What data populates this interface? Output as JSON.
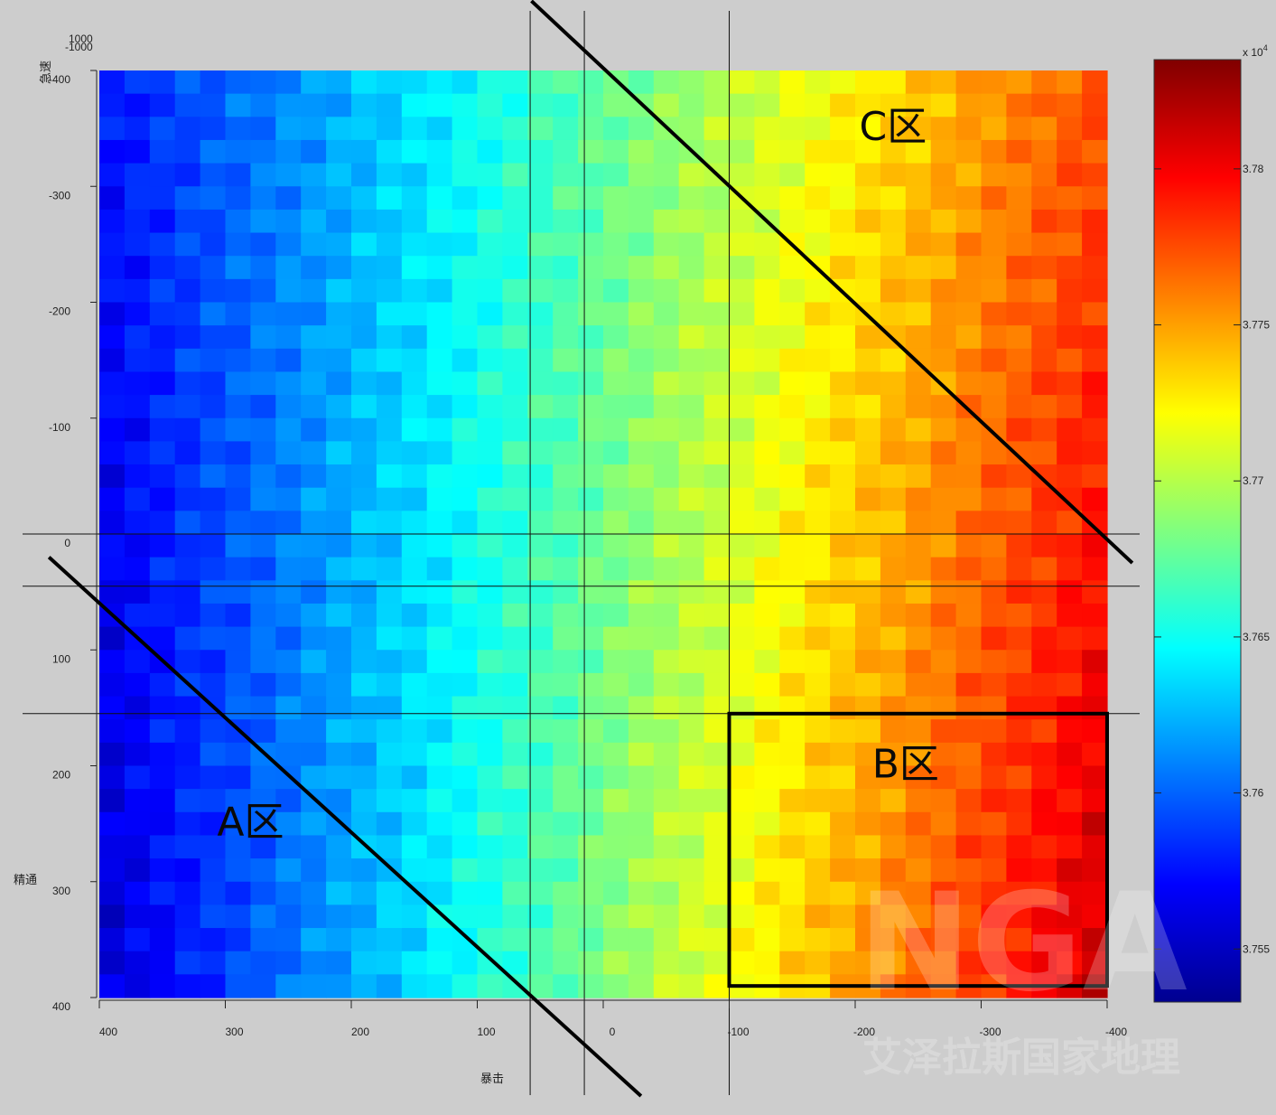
{
  "chart_data": {
    "type": "heatmap",
    "title": "",
    "xlabel": "暴击",
    "ylabel": "精通",
    "top_axis_label": "急速",
    "xlim": [
      400,
      -400
    ],
    "ylim": [
      -400,
      400
    ],
    "x_ticks": [
      "400",
      "300",
      "200",
      "100",
      "0",
      "-100",
      "-200",
      "-300",
      "-400"
    ],
    "y_ticks": [
      "-400",
      "-300",
      "-200",
      "-100",
      "0",
      "100",
      "200",
      "300",
      "400"
    ],
    "x_tick_values": [
      400,
      300,
      200,
      100,
      0,
      -100,
      -200,
      -300,
      -400
    ],
    "y_tick_values": [
      -400,
      -300,
      -200,
      -100,
      0,
      100,
      200,
      300,
      400
    ],
    "top_corner_ticks": [
      "1000",
      "-1000"
    ],
    "colorbar": {
      "colormap": "jet",
      "multiplier": "x 10",
      "exponent": "4",
      "range": [
        3.7533,
        3.7835
      ],
      "ticks": [
        "3.755",
        "3.76",
        "3.765",
        "3.77",
        "3.775",
        "3.78"
      ],
      "tick_values": [
        3.755,
        3.76,
        3.765,
        3.77,
        3.775,
        3.78
      ]
    },
    "value_field": {
      "description": "value increases from upper-left (blue) to lower-right (red)",
      "corners": {
        "x400_y-400": 3.7575,
        "x-400_y-400": 3.7775,
        "x400_y400": 3.7555,
        "x-400_y400": 3.7815
      }
    },
    "annotations": [
      {
        "label": "A区",
        "x": 280,
        "y": 260
      },
      {
        "label": "B区",
        "x": -240,
        "y": 210
      },
      {
        "label": "C区",
        "x": -230,
        "y": -340
      }
    ],
    "region_b_box": {
      "x": [
        -100,
        -400
      ],
      "y": [
        155,
        390
      ]
    },
    "boundary_lines": [
      {
        "from": {
          "x": 440,
          "y": 20
        },
        "to": {
          "x": -30,
          "y": 485
        }
      },
      {
        "from": {
          "x": 57,
          "y": -460
        },
        "to": {
          "x": -420,
          "y": 25
        }
      }
    ],
    "reference_lines": {
      "vertical_x": [
        58,
        15,
        -100
      ],
      "horizontal_y": [
        0,
        45,
        155
      ]
    }
  },
  "watermark": {
    "logo": "NGA",
    "caption": "艾泽拉斯国家地理"
  }
}
